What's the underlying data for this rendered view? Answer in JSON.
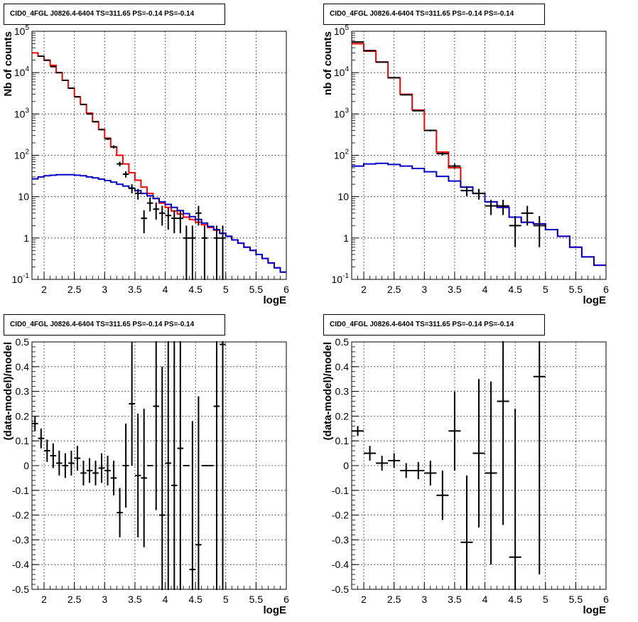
{
  "colors": {
    "data": "#000000",
    "total_model": "#ff0000",
    "component_model": "#0000cc"
  },
  "chart_data": [
    {
      "type": "line",
      "title": "CID0_4FGL J0826.4-6404 TS=311.65 PS=-0.14 PS=-0.14",
      "xlabel": "logE",
      "ylabel": "Nb of counts",
      "xlim": [
        1.8,
        6.0
      ],
      "ylim": [
        0.1,
        100000
      ],
      "yscale": "log",
      "grid": true,
      "x_ticks": [
        "2",
        "2.5",
        "3",
        "3.5",
        "4",
        "4.5",
        "5",
        "5.5",
        "6"
      ],
      "y_ticks": [
        "10^-1",
        "1",
        "10",
        "10^2",
        "10^3",
        "10^4",
        "10^5"
      ],
      "bin_edges": [
        1.8,
        1.9,
        2.0,
        2.1,
        2.2,
        2.3,
        2.4,
        2.5,
        2.6,
        2.7,
        2.8,
        2.9,
        3.0,
        3.1,
        3.2,
        3.3,
        3.4,
        3.5,
        3.6,
        3.7,
        3.8,
        3.9,
        4.0,
        4.1,
        4.2,
        4.3,
        4.4,
        4.5,
        4.6,
        4.7,
        4.8,
        4.9,
        5.0,
        5.1,
        5.2,
        5.3,
        5.4,
        5.5,
        5.6,
        5.7,
        5.8,
        5.9,
        6.0
      ],
      "series": [
        {
          "name": "",
          "style": "step",
          "color": "#ff0000",
          "values": [
            30000,
            25000,
            20000,
            15000,
            10000,
            6500,
            4200,
            2600,
            1700,
            1050,
            650,
            420,
            260,
            160,
            100,
            62,
            38,
            25,
            17,
            12,
            9,
            7,
            5.5,
            4.5,
            3.8,
            3.2,
            2.8,
            2.4,
            2.1,
            1.8,
            1.55,
            1.3,
            1.1,
            0.9,
            0.75,
            0.6,
            0.5,
            0.4,
            0.32,
            0.25,
            0.19,
            0.15
          ]
        },
        {
          "name": "",
          "style": "step",
          "color": "#0000cc",
          "values": [
            27,
            30,
            32,
            33,
            34,
            34,
            34,
            33,
            32,
            30,
            28.5,
            26.5,
            24.5,
            22.5,
            20,
            18,
            16,
            14,
            12,
            10.5,
            9,
            7.5,
            6.5,
            5.5,
            4.6,
            3.9,
            3.3,
            2.8,
            2.3,
            1.9,
            1.6,
            1.3,
            1.1,
            0.9,
            0.75,
            0.6,
            0.5,
            0.4,
            0.32,
            0.25,
            0.19,
            0.15
          ]
        },
        {
          "name": "",
          "style": "errorbar",
          "color": "#000000",
          "x": [
            1.95,
            2.05,
            2.15,
            2.25,
            2.35,
            2.45,
            2.55,
            2.65,
            2.75,
            2.85,
            2.95,
            3.05,
            3.15,
            3.25,
            3.35,
            3.45,
            3.55,
            3.65,
            3.75,
            3.85,
            3.95,
            4.05,
            4.15,
            4.25,
            4.35,
            4.45,
            4.55,
            4.65,
            4.85,
            4.95
          ],
          "values": [
            25000,
            20000,
            14000,
            10000,
            6500,
            4200,
            2600,
            1700,
            1000,
            650,
            420,
            250,
            160,
            62,
            35,
            16,
            12,
            3,
            7,
            5,
            4,
            3.5,
            3,
            3,
            1,
            1,
            4,
            1,
            1,
            1
          ],
          "yerr": [
            160,
            140,
            120,
            100,
            80,
            65,
            51,
            41,
            32,
            25,
            20,
            16,
            13,
            8,
            6,
            4,
            3.5,
            1.7,
            2.6,
            2.2,
            2,
            1.9,
            1.7,
            1.7,
            1,
            1,
            2,
            1,
            1,
            1
          ]
        }
      ]
    },
    {
      "type": "line",
      "title": "CID0_4FGL J0826.4-6404 TS=311.65 PS=-0.14 PS=-0.14",
      "xlabel": "logE",
      "ylabel": "nb of counts",
      "xlim": [
        1.8,
        6.0
      ],
      "ylim": [
        0.1,
        100000
      ],
      "yscale": "log",
      "grid": true,
      "x_ticks": [
        "2",
        "2.5",
        "3",
        "3.5",
        "4",
        "4.5",
        "5",
        "5.5",
        "6"
      ],
      "y_ticks": [
        "10^-1",
        "1",
        "10",
        "10^2",
        "10^3",
        "10^4",
        "10^5"
      ],
      "bin_edges": [
        1.8,
        2.0,
        2.2,
        2.4,
        2.6,
        2.8,
        3.0,
        3.2,
        3.4,
        3.6,
        3.8,
        4.0,
        4.2,
        4.4,
        4.6,
        4.8,
        5.0,
        5.2,
        5.4,
        5.6,
        5.8,
        6.0
      ],
      "series": [
        {
          "name": "",
          "style": "step",
          "color": "#ff0000",
          "values": [
            50000,
            33000,
            18000,
            7500,
            3000,
            1250,
            400,
            120,
            50,
            17,
            12,
            7.5,
            5.5,
            3.2,
            2.4,
            2.2,
            1.6,
            1.1,
            0.6,
            0.35,
            0.22
          ]
        },
        {
          "name": "",
          "style": "step",
          "color": "#0000cc",
          "values": [
            55,
            62,
            64,
            60,
            55,
            48,
            40,
            31,
            24,
            17,
            12,
            7.5,
            5.5,
            3.2,
            2.4,
            2.2,
            1.6,
            1.1,
            0.6,
            0.35,
            0.22
          ]
        },
        {
          "name": "",
          "style": "errorbar",
          "color": "#000000",
          "x": [
            1.9,
            2.1,
            2.3,
            2.5,
            2.7,
            2.9,
            3.1,
            3.3,
            3.5,
            3.7,
            3.9,
            4.1,
            4.3,
            4.5,
            4.7,
            4.9
          ],
          "values": [
            55000,
            34000,
            18000,
            7500,
            2900,
            1200,
            400,
            110,
            55,
            14,
            12,
            6,
            6,
            2,
            4,
            2
          ],
          "yerr": [
            240,
            185,
            134,
            87,
            54,
            35,
            20,
            10.5,
            7.4,
            3.7,
            3.5,
            2.4,
            2.4,
            1.4,
            2,
            1.4
          ]
        }
      ]
    },
    {
      "type": "scatter",
      "title": "CID0_4FGL J0826.4-6404 TS=311.65 PS=-0.14 PS=-0.14",
      "xlabel": "logE",
      "ylabel": "(data-model)/model",
      "xlim": [
        1.8,
        6.0
      ],
      "ylim": [
        -0.5,
        0.5
      ],
      "grid": true,
      "x_ticks": [
        "2",
        "2.5",
        "3",
        "3.5",
        "4",
        "4.5",
        "5",
        "5.5",
        "6"
      ],
      "y_ticks": [
        "-0.5",
        "-0.4",
        "-0.3",
        "-0.2",
        "-0.1",
        "0",
        "0.1",
        "0.2",
        "0.3",
        "0.4",
        "0.5"
      ],
      "series": [
        {
          "name": "",
          "style": "errorbar",
          "color": "#000000",
          "x": [
            1.85,
            1.95,
            2.05,
            2.15,
            2.25,
            2.35,
            2.45,
            2.55,
            2.65,
            2.75,
            2.85,
            2.95,
            3.05,
            3.15,
            3.25,
            3.35,
            3.45,
            3.55,
            3.65,
            3.75,
            3.85,
            3.95,
            4.05,
            4.15,
            4.25,
            4.35,
            4.45,
            4.55,
            4.65,
            4.75,
            4.85,
            4.95
          ],
          "values": [
            0.17,
            0.11,
            0.06,
            0.04,
            0.01,
            0.0,
            0.01,
            0.03,
            -0.03,
            -0.02,
            -0.03,
            -0.01,
            -0.02,
            -0.05,
            -0.19,
            0.0,
            0.25,
            -0.04,
            -0.05,
            0.0,
            0.24,
            -0.2,
            0.01,
            -0.08,
            0.07,
            0.0,
            -0.42,
            -0.32,
            0.0,
            0.0,
            0.24,
            0.49
          ],
          "yerr": [
            0.03,
            0.04,
            0.045,
            0.05,
            0.05,
            0.05,
            0.05,
            0.05,
            0.05,
            0.05,
            0.05,
            0.06,
            0.06,
            0.07,
            0.1,
            0.17,
            0.25,
            0.25,
            0.28,
            0.0,
            0.42,
            0.6,
            0.6,
            0.6,
            0.6,
            0.0,
            0.6,
            0.6,
            0.0,
            0.0,
            0.75,
            1.0
          ]
        }
      ]
    },
    {
      "type": "scatter",
      "title": "CID0_4FGL J0826.4-6404 TS=311.65 PS=-0.14 PS=-0.14",
      "xlabel": "logE",
      "ylabel": "(data-model)/model",
      "xlim": [
        1.8,
        6.0
      ],
      "ylim": [
        -0.5,
        0.5
      ],
      "grid": true,
      "x_ticks": [
        "2",
        "2.5",
        "3",
        "3.5",
        "4",
        "4.5",
        "5",
        "5.5",
        "6"
      ],
      "y_ticks": [
        "-0.5",
        "-0.4",
        "-0.3",
        "-0.2",
        "-0.1",
        "0",
        "0.1",
        "0.2",
        "0.3",
        "0.4",
        "0.5"
      ],
      "series": [
        {
          "name": "",
          "style": "errorbar",
          "color": "#000000",
          "x": [
            1.9,
            2.1,
            2.3,
            2.5,
            2.7,
            2.9,
            3.1,
            3.3,
            3.5,
            3.7,
            3.9,
            4.1,
            4.3,
            4.5,
            4.9
          ],
          "values": [
            0.14,
            0.05,
            0.01,
            0.02,
            -0.02,
            -0.02,
            -0.03,
            -0.12,
            0.14,
            -0.31,
            0.05,
            -0.03,
            0.26,
            -0.37,
            0.36
          ],
          "yerr": [
            0.02,
            0.03,
            0.03,
            0.03,
            0.03,
            0.035,
            0.05,
            0.1,
            0.16,
            0.27,
            0.3,
            0.37,
            0.5,
            0.6,
            0.8
          ]
        }
      ]
    }
  ]
}
